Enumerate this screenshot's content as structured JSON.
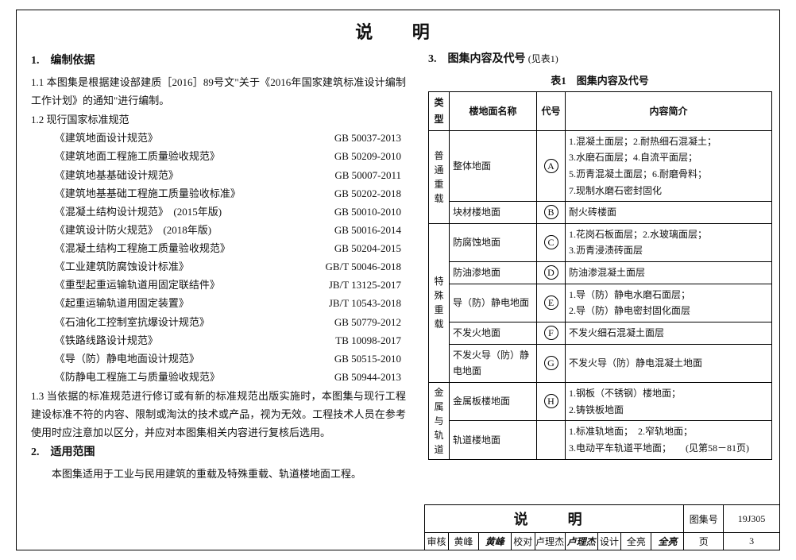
{
  "page": {
    "title": "说 明",
    "frame_color": "#000000",
    "bg": "#ffffff"
  },
  "left": {
    "sec1_heading": "1.　编制依据",
    "p1_1": "1.1 本图集是根据建设部建质［2016］89号文\"关于《2016年国家建筑标准设计编制工作计划》的通知\"进行编制。",
    "p1_2_lead": "1.2 现行国家标准规范",
    "standards": [
      {
        "name": "《建筑地面设计规范》",
        "code": "GB 50037-2013"
      },
      {
        "name": "《建筑地面工程施工质量验收规范》",
        "code": "GB 50209-2010"
      },
      {
        "name": "《建筑地基基础设计规范》",
        "code": "GB 50007-2011"
      },
      {
        "name": "《建筑地基基础工程施工质量验收标准》",
        "code": "GB 50202-2018"
      },
      {
        "name": "《混凝土结构设计规范》　(2015年版)",
        "code": "GB 50010-2010"
      },
      {
        "name": "《建筑设计防火规范》　(2018年版)",
        "code": "GB 50016-2014"
      },
      {
        "name": "《混凝土结构工程施工质量验收规范》",
        "code": "GB 50204-2015"
      },
      {
        "name": "《工业建筑防腐蚀设计标准》",
        "code": "GB/T 50046-2018"
      },
      {
        "name": "《重型起重运输轨道用固定联结件》",
        "code": "JB/T 13125-2017"
      },
      {
        "name": "《起重运输轨道用固定装置》",
        "code": "JB/T 10543-2018"
      },
      {
        "name": "《石油化工控制室抗爆设计规范》",
        "code": "GB 50779-2012"
      },
      {
        "name": "《铁路线路设计规范》",
        "code": "TB 10098-2017"
      },
      {
        "name": "《导（防）静电地面设计规范》",
        "code": "GB 50515-2010"
      },
      {
        "name": "《防静电工程施工与质量验收规范》",
        "code": "GB 50944-2013"
      }
    ],
    "p1_3": "1.3 当依据的标准规范进行修订或有新的标准规范出版实施时，本图集与现行工程建设标准不符的内容、限制或淘汰的技术或产品，视为无效。工程技术人员在参考使用时应注意加以区分，并应对本图集相关内容进行复核后选用。",
    "sec2_heading": "2.　适用范围",
    "p2": "本图集适用于工业与民用建筑的重载及特殊重载、轨道楼地面工程。"
  },
  "right": {
    "sec3_heading": "3.　图集内容及代号",
    "sec3_see": "(见表1)",
    "table_caption": "表1　图集内容及代号",
    "headers": {
      "type": "类型",
      "name": "楼地面名称",
      "code": "代号",
      "summary": "内容简介"
    },
    "colwidths": {
      "type": 26,
      "name": 110,
      "code": 36,
      "summary": 260
    },
    "groups": [
      {
        "type_label": "普通重载",
        "rows": [
          {
            "name": "整体地面",
            "code": "A",
            "summary": [
              "1.混凝土面层；2.耐热细石混凝土；",
              "3.水磨石面层；4.自流平面层；",
              "5.沥青混凝土面层；6.耐磨骨料；",
              "7.现制水磨石密封固化"
            ]
          },
          {
            "name": "块材楼地面",
            "code": "B",
            "summary": [
              "耐火砖楼面"
            ]
          }
        ]
      },
      {
        "type_label": "特殊重载",
        "rows": [
          {
            "name": "防腐蚀地面",
            "code": "C",
            "summary": [
              "1.花岗石板面层；2.水玻璃面层；",
              "3.沥青浸渍砖面层"
            ]
          },
          {
            "name": "防油渗地面",
            "code": "D",
            "summary": [
              "防油渗混凝土面层"
            ]
          },
          {
            "name": "导（防）静电地面",
            "code": "E",
            "summary": [
              "1.导（防）静电水磨石面层；",
              "2.导（防）静电密封固化面层"
            ]
          },
          {
            "name": "不发火地面",
            "code": "F",
            "summary": [
              "不发火细石混凝土面层"
            ]
          },
          {
            "name": "不发火导（防）静电地面",
            "code": "G",
            "summary": [
              "不发火导（防）静电混凝土地面"
            ]
          }
        ]
      },
      {
        "type_label": "金属与轨道",
        "rows": [
          {
            "name": "金属板楼地面",
            "code": "H",
            "summary": [
              "1.钢板（不锈钢）楼地面；",
              "2.铸铁板地面"
            ]
          },
          {
            "name": "轨道楼地面",
            "code": "",
            "summary": [
              "1.标准轨地面；　2.窄轨地面；",
              "3.电动平车轨道平地面；　　(见第58－81页)"
            ]
          }
        ]
      }
    ]
  },
  "titleblock": {
    "row1": {
      "main": "说　明",
      "set_label": "图集号",
      "set_value": "19J305"
    },
    "row2": {
      "c1_label": "审核",
      "c1_name": "黄峰",
      "c1_sign": "黄峰",
      "c2_label": "校对",
      "c2_name": "卢理杰",
      "c2_sign": "卢理杰",
      "c3_label": "设计",
      "c3_name": "全亮",
      "c3_sign": "全亮",
      "page_label": "页",
      "page_value": "3"
    },
    "widths": {
      "row1_main": 327,
      "row1_setlabel": 50,
      "row1_setval": 70,
      "row2_lbl": 30,
      "row2_name": 38,
      "row2_sign": 41,
      "row2_pagelabel": 50,
      "row2_pageval": 70
    }
  }
}
